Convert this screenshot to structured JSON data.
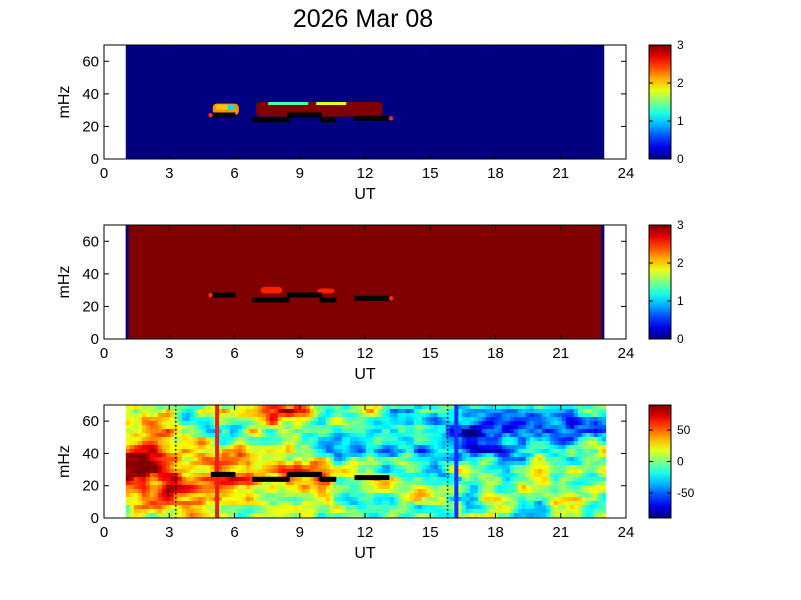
{
  "title": "2026 Mar 08",
  "chart_data": [
    {
      "type": "heatmap",
      "xlabel": "UT",
      "ylabel": "mHz",
      "xlim": [
        0,
        24
      ],
      "ylim": [
        0,
        70
      ],
      "xticks": [
        "0",
        "3",
        "6",
        "9",
        "12",
        "15",
        "18",
        "21",
        "24"
      ],
      "yticks": [
        "0",
        "20",
        "40",
        "60"
      ],
      "data_x_range": [
        1,
        23
      ],
      "colorbar": {
        "min": 0,
        "max": 3,
        "ticks": [
          "0",
          "1",
          "2",
          "3"
        ]
      },
      "background_value": 0,
      "features": [
        {
          "x0": 7.0,
          "x1": 12.8,
          "y0": 26,
          "y1": 35,
          "value": 3
        },
        {
          "x0": 5.0,
          "x1": 6.2,
          "y0": 27,
          "y1": 34,
          "value": 2.2
        }
      ],
      "markers": [
        {
          "x": 4.9,
          "y": 27,
          "color": "#ff2a1a"
        },
        {
          "x": 13.2,
          "y": 25,
          "color": "#ff2a1a"
        }
      ],
      "traces": [
        {
          "x": [
            5.0,
            6.0
          ],
          "y": 27
        },
        {
          "x": [
            6.9,
            8.5
          ],
          "y": 24
        },
        {
          "x": [
            8.5,
            10.0
          ],
          "y": 27
        },
        {
          "x": [
            10.0,
            10.6
          ],
          "y": 24
        },
        {
          "x": [
            11.6,
            13.1
          ],
          "y": 25
        }
      ]
    },
    {
      "type": "heatmap",
      "xlabel": "UT",
      "ylabel": "mHz",
      "xlim": [
        0,
        24
      ],
      "ylim": [
        0,
        70
      ],
      "xticks": [
        "0",
        "3",
        "6",
        "9",
        "12",
        "15",
        "18",
        "21",
        "24"
      ],
      "yticks": [
        "0",
        "20",
        "40",
        "60"
      ],
      "data_x_range": [
        1,
        23
      ],
      "colorbar": {
        "min": 0,
        "max": 3,
        "ticks": [
          "0",
          "1",
          "2",
          "3"
        ]
      },
      "background_value": 3,
      "edge_value": 0,
      "features": [
        {
          "x0": 7.2,
          "x1": 8.2,
          "y0": 28,
          "y1": 32,
          "value": 3.2
        },
        {
          "x0": 9.8,
          "x1": 10.6,
          "y0": 28,
          "y1": 31,
          "value": 3.2
        }
      ],
      "markers": [
        {
          "x": 4.9,
          "y": 27,
          "color": "#ff2a1a"
        },
        {
          "x": 13.2,
          "y": 25,
          "color": "#ff2a1a"
        }
      ],
      "traces": [
        {
          "x": [
            5.0,
            6.0
          ],
          "y": 27
        },
        {
          "x": [
            6.9,
            8.5
          ],
          "y": 24
        },
        {
          "x": [
            8.5,
            10.0
          ],
          "y": 27
        },
        {
          "x": [
            10.0,
            10.6
          ],
          "y": 24
        },
        {
          "x": [
            11.6,
            13.1
          ],
          "y": 25
        }
      ]
    },
    {
      "type": "heatmap",
      "xlabel": "UT",
      "ylabel": "mHz",
      "xlim": [
        0,
        24
      ],
      "ylim": [
        0,
        70
      ],
      "xticks": [
        "0",
        "3",
        "6",
        "9",
        "12",
        "15",
        "18",
        "21",
        "24"
      ],
      "yticks": [
        "0",
        "20",
        "40",
        "60"
      ],
      "data_x_range": [
        1,
        23
      ],
      "colorbar": {
        "min": -90,
        "max": 90,
        "ticks": [
          "50",
          "0",
          "-50"
        ]
      },
      "field_features": [
        {
          "x": 1.5,
          "y": 32,
          "sx": 2.0,
          "sy": 14,
          "value": 70
        },
        {
          "x": 8.0,
          "y": 28,
          "sx": 3.0,
          "sy": 6,
          "value": 55
        },
        {
          "x": 8.3,
          "y": 65,
          "sx": 1.2,
          "sy": 6,
          "value": 60
        },
        {
          "x": 17.0,
          "y": 52,
          "sx": 2.5,
          "sy": 10,
          "value": -55
        },
        {
          "x": 20.5,
          "y": 60,
          "sx": 2.0,
          "sy": 8,
          "value": -40
        },
        {
          "x": 13.0,
          "y": 40,
          "sx": 2.5,
          "sy": 6,
          "value": -30
        },
        {
          "x": 4.0,
          "y": 10,
          "sx": 2.0,
          "sy": 8,
          "value": 25
        }
      ],
      "vertical_lines": [
        {
          "x": 5.2,
          "color": "#e8201a",
          "style": "solid"
        },
        {
          "x": 16.2,
          "color": "#1030ff",
          "style": "solid"
        },
        {
          "x": 3.3,
          "color": "#000000",
          "style": "dotted"
        },
        {
          "x": 15.8,
          "color": "#000000",
          "style": "dotted"
        }
      ],
      "traces": [
        {
          "x": [
            5.0,
            6.0
          ],
          "y": 27
        },
        {
          "x": [
            6.9,
            8.5
          ],
          "y": 24
        },
        {
          "x": [
            8.5,
            10.0
          ],
          "y": 27
        },
        {
          "x": [
            10.0,
            10.6
          ],
          "y": 24
        },
        {
          "x": [
            11.6,
            13.1
          ],
          "y": 25
        }
      ]
    }
  ]
}
